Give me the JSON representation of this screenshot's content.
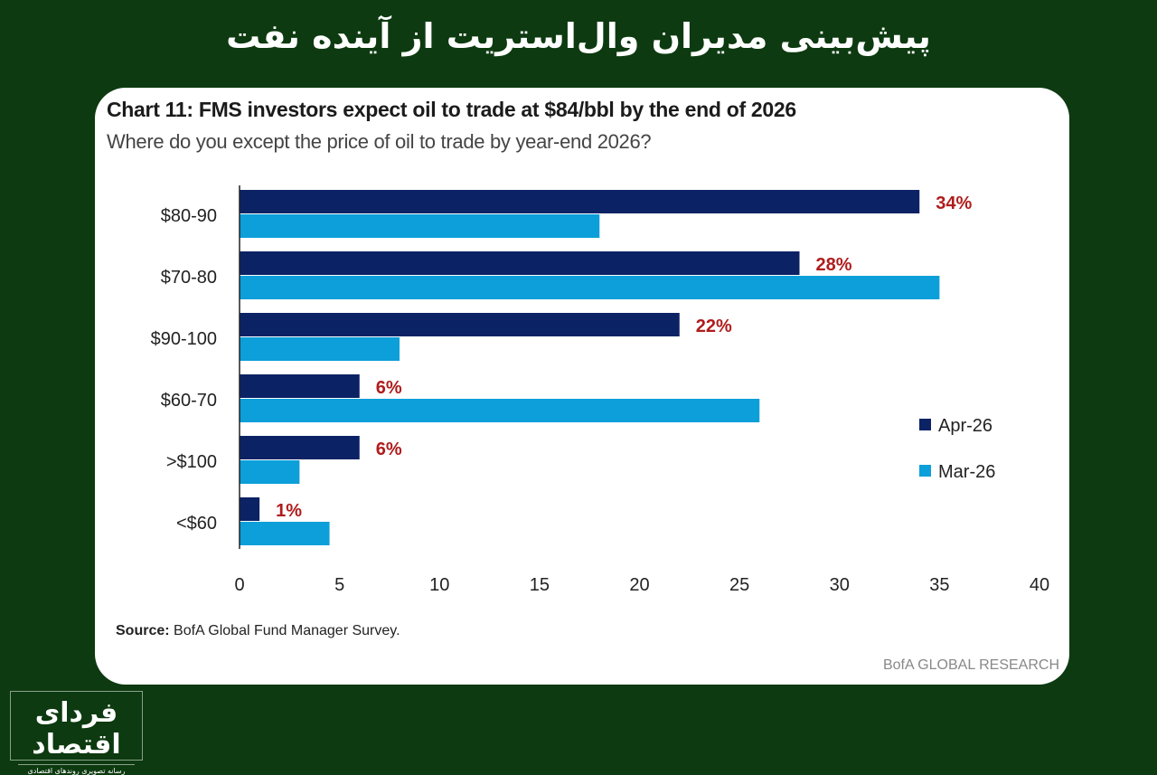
{
  "headline": "پیش‌بینی مدیران وال‌استریت از آینده نفت",
  "logo": {
    "name": "فردای اقتصاد",
    "tagline": "رسانه تصویری روندهای اقتصادی"
  },
  "chart_data": {
    "type": "bar",
    "orientation": "horizontal",
    "title": "Chart 11: FMS investors expect oil to trade at $84/bbl by the end of 2026",
    "subtitle": "Where do you except the price of oil to trade by year-end 2026?",
    "categories": [
      "$80-90",
      "$70-80",
      "$90-100",
      "$60-70",
      ">$100",
      "<$60"
    ],
    "series": [
      {
        "name": "Apr-26",
        "color": "#0b2265",
        "values": [
          34,
          28,
          22,
          6,
          6,
          1
        ],
        "data_labels": [
          "34%",
          "28%",
          "22%",
          "6%",
          "6%",
          "1%"
        ]
      },
      {
        "name": "Mar-26",
        "color": "#0c9fd9",
        "values": [
          18,
          35,
          8,
          26,
          3,
          4.5
        ]
      }
    ],
    "xlim": [
      0,
      40
    ],
    "xticks": [
      "0",
      "5",
      "10",
      "15",
      "20",
      "25",
      "30",
      "35",
      "40"
    ],
    "data_label_color": "#b01c1c",
    "legend_position": "right",
    "grid": false
  },
  "source_label": "Source:",
  "source_text": " BofA Global Fund Manager Survey.",
  "brand": "BofA GLOBAL RESEARCH"
}
